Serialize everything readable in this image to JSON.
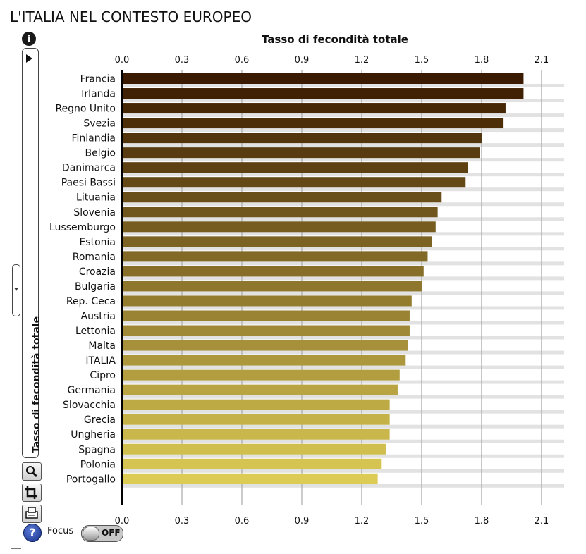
{
  "page": {
    "title": "L'ITALIA NEL CONTESTO EUROPEO"
  },
  "panel": {
    "label": "Tasso di fecondità totale",
    "info_icon": "info-icon",
    "play_icon": "play-icon",
    "tools": [
      "zoom-icon",
      "crop-icon",
      "print-icon"
    ],
    "help_icon": "help-icon",
    "help_glyph": "?",
    "info_glyph": "i",
    "focus_label": "Focus",
    "focus_state": "OFF"
  },
  "chart_data": {
    "type": "bar",
    "orientation": "horizontal",
    "title": "Tasso di fecondità totale",
    "xlim": [
      0,
      2.2
    ],
    "ticks": [
      "0.0",
      "0.3",
      "0.6",
      "0.9",
      "1.2",
      "1.5",
      "1.8",
      "2.1"
    ],
    "grid": true,
    "color_dark": "#3a1a00",
    "color_light": "#dccb55",
    "categories": [
      "Francia",
      "Irlanda",
      "Regno Unito",
      "Svezia",
      "Finlandia",
      "Belgio",
      "Danimarca",
      "Paesi Bassi",
      "Lituania",
      "Slovenia",
      "Lussemburgo",
      "Estonia",
      "Romania",
      "Croazia",
      "Bulgaria",
      "Rep. Ceca",
      "Austria",
      "Lettonia",
      "Malta",
      "ITALIA",
      "Cipro",
      "Germania",
      "Slovacchia",
      "Grecia",
      "Ungheria",
      "Spagna",
      "Polonia",
      "Portogallo"
    ],
    "values": [
      2.01,
      2.01,
      1.92,
      1.91,
      1.8,
      1.79,
      1.73,
      1.72,
      1.6,
      1.58,
      1.57,
      1.55,
      1.53,
      1.51,
      1.5,
      1.45,
      1.44,
      1.44,
      1.43,
      1.42,
      1.39,
      1.38,
      1.34,
      1.34,
      1.34,
      1.32,
      1.3,
      1.28
    ]
  }
}
